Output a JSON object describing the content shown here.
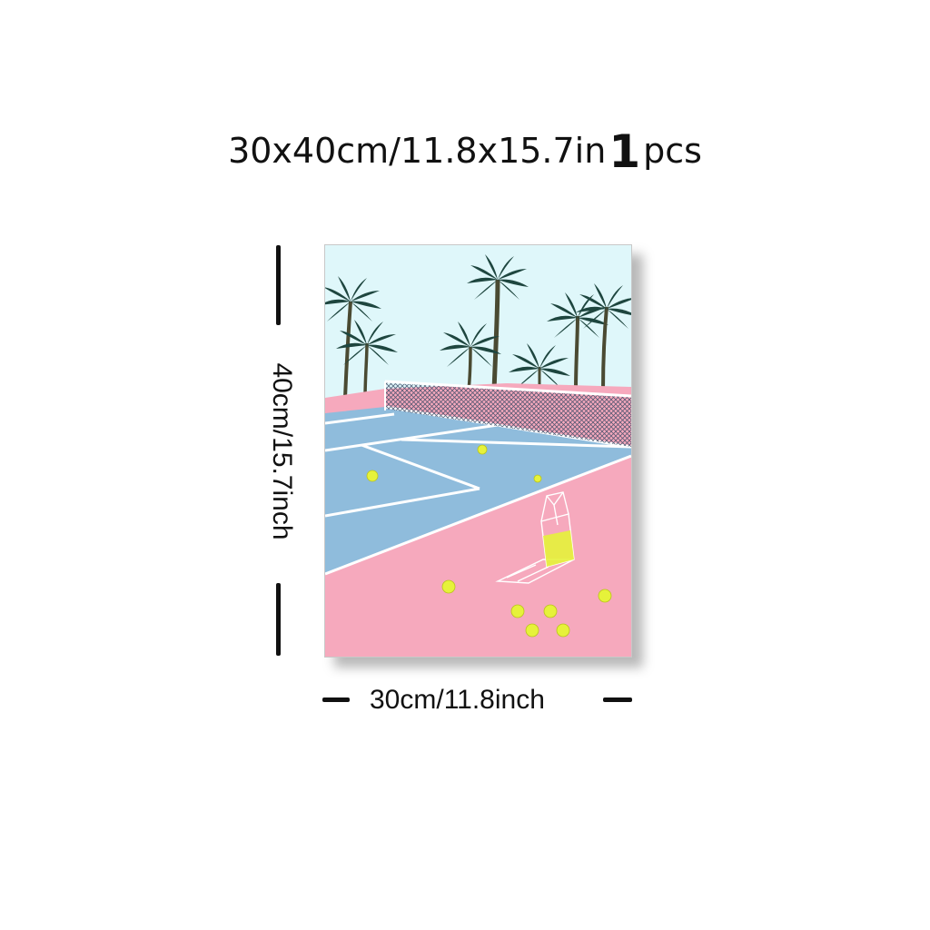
{
  "headline": {
    "size_text": "30x40cm/11.8x15.7in",
    "quantity_number": "1",
    "quantity_unit": "pcs"
  },
  "dimensions": {
    "height_label": "40cm/15.7inch",
    "width_label": "30cm/11.8inch"
  },
  "artwork": {
    "subject": "tennis court with palm trees",
    "colors": {
      "sky": "#dff7fa",
      "court_blue": "#8fbcdc",
      "court_pink": "#f6a9bd",
      "palm": "#1e463f",
      "trunk": "#4a4a32",
      "ball": "#e6f23a",
      "net": "#3c4a66"
    },
    "icons": [
      "palm-tree-icon",
      "tennis-ball-icon",
      "ball-basket-icon",
      "tennis-net-icon"
    ]
  }
}
